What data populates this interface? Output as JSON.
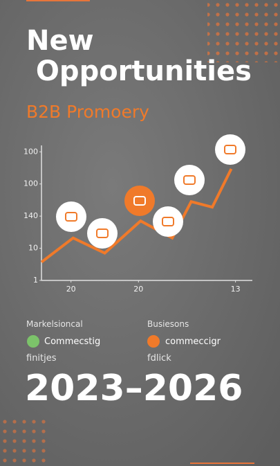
{
  "title": "New Opportunities",
  "subtitle": "B2B Promoery",
  "chart_data": {
    "type": "line",
    "x": [
      0,
      1.5,
      3,
      4.7,
      6.2,
      7.1,
      8.1,
      9
    ],
    "series": [
      {
        "name": null,
        "color": "#f07a2a",
        "values": [
          0.57,
          1.32,
          0.85,
          1.85,
          1.32,
          2.45,
          2.28,
          3.47
        ]
      }
    ],
    "xlim": [
      0,
      10
    ],
    "xticks": [
      {
        "value": 1.4,
        "label": "20"
      },
      {
        "value": 4.6,
        "label": "20"
      },
      {
        "value": 9.2,
        "label": "13"
      }
    ],
    "ylim": [
      0,
      4.2
    ],
    "yticks": [
      {
        "value": 0,
        "label": "1"
      },
      {
        "value": 1,
        "label": "10"
      },
      {
        "value": 2,
        "label": "140"
      },
      {
        "value": 3,
        "label": "100"
      },
      {
        "value": 4,
        "label": "100"
      }
    ]
  },
  "info": {
    "left_heading": "Markelsioncal",
    "right_heading": "Busiesons",
    "items": [
      {
        "label": "Commecstig",
        "color": "#7cc36a"
      },
      {
        "label": "commeccigr",
        "color": "#f07a2a"
      }
    ],
    "left_note": "finitjes",
    "right_note": "fdlick",
    "years": "2023–2026"
  }
}
